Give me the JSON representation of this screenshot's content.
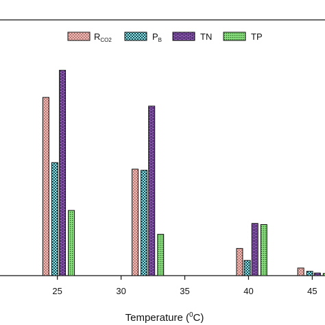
{
  "chart_data": {
    "type": "bar",
    "xlabel_prefix": "Temperature (",
    "xlabel_sup": "0",
    "xlabel_suffix": "C)",
    "ylabel": "",
    "x_ticks": [
      25,
      30,
      35,
      40,
      45
    ],
    "xlim": [
      20.5,
      46.0
    ],
    "ylim": [
      0,
      100
    ],
    "legend_placement": "top-center",
    "series": [
      {
        "name": "R",
        "name_sub": "CO2",
        "color": "#f4b6b0",
        "pattern": "dots",
        "x": [
          24.1,
          31.1,
          39.3,
          44.1
        ],
        "values": [
          82,
          49,
          12.5,
          3.5
        ]
      },
      {
        "name": "P",
        "name_sub": "B",
        "color": "#8fe6ea",
        "pattern": "checker",
        "x": [
          24.8,
          31.8,
          39.9,
          44.8
        ],
        "values": [
          52,
          48.5,
          7,
          2
        ]
      },
      {
        "name": "TN",
        "name_sub": "",
        "color": "#b07ad6",
        "pattern": "brick",
        "x": [
          25.4,
          32.4,
          40.5,
          45.4
        ],
        "values": [
          94.5,
          78,
          24,
          1.2
        ]
      },
      {
        "name": "TP",
        "name_sub": "",
        "color": "#8ae07e",
        "pattern": "dots-dense",
        "x": [
          26.1,
          33.1,
          41.2,
          46.1
        ],
        "values": [
          30,
          19,
          23.5,
          1
        ]
      }
    ]
  }
}
